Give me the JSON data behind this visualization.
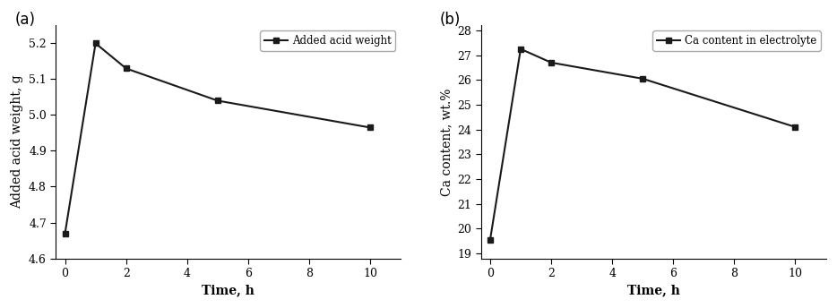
{
  "a_x": [
    0,
    1,
    2,
    5,
    10
  ],
  "a_y": [
    4.67,
    5.2,
    5.13,
    5.04,
    4.965
  ],
  "a_ylabel": "Added acid weight, g",
  "a_xlabel": "Time, h",
  "a_legend": "Added acid weight",
  "a_ylim": [
    4.6,
    5.25
  ],
  "a_yticks": [
    4.6,
    4.7,
    4.8,
    4.9,
    5.0,
    5.1,
    5.2
  ],
  "a_xticks": [
    0,
    2,
    4,
    6,
    8,
    10
  ],
  "a_xlim": [
    -0.3,
    11
  ],
  "b_x": [
    0,
    1,
    2,
    5,
    10
  ],
  "b_y": [
    19.55,
    27.25,
    26.7,
    26.05,
    24.1
  ],
  "b_ylabel": "Ca content, wt.%",
  "b_xlabel": "Time, h",
  "b_legend": "Ca content in electrolyte",
  "b_ylim": [
    18.8,
    28.2
  ],
  "b_yticks": [
    19,
    20,
    21,
    22,
    23,
    24,
    25,
    26,
    27,
    28
  ],
  "b_xticks": [
    0,
    2,
    4,
    6,
    8,
    10
  ],
  "b_xlim": [
    -0.3,
    11
  ],
  "line_color": "#1a1a1a",
  "marker": "s",
  "markersize": 5,
  "linewidth": 1.5,
  "panel_a_label": "(a)",
  "panel_b_label": "(b)",
  "label_fontsize": 12,
  "tick_fontsize": 9,
  "legend_fontsize": 8.5,
  "axis_label_fontsize": 10,
  "font_family": "DejaVu Serif"
}
